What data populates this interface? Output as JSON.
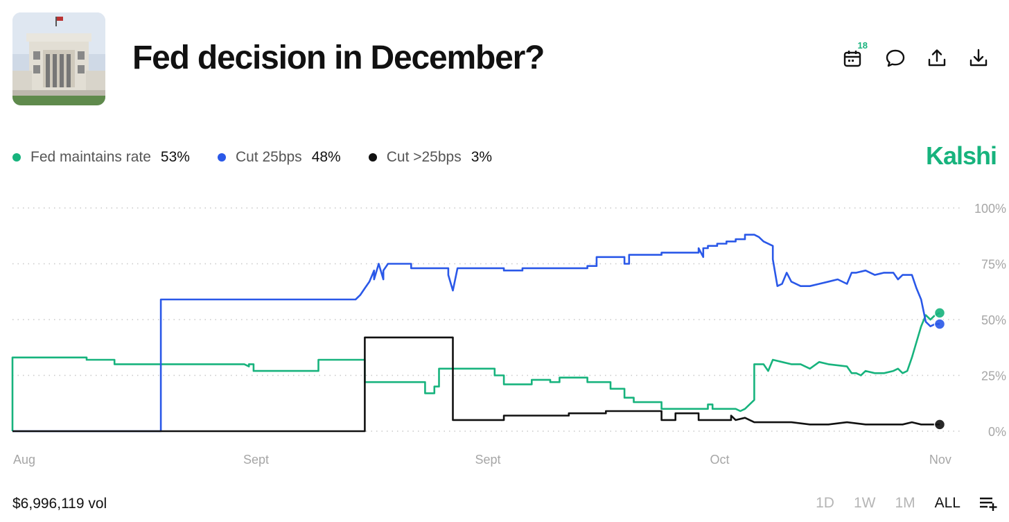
{
  "header": {
    "title": "Fed decision in December?",
    "calendar_badge": "18"
  },
  "legend": [
    {
      "label": "Fed maintains rate",
      "value": "53%",
      "color": "#17b37d"
    },
    {
      "label": "Cut 25bps",
      "value": "48%",
      "color": "#2a58e8"
    },
    {
      "label": "Cut >25bps",
      "value": "3%",
      "color": "#111111"
    }
  ],
  "brand": "Kalshi",
  "footer": {
    "volume": "$6,996,119 vol",
    "ranges": [
      "1D",
      "1W",
      "1M",
      "ALL"
    ],
    "active_range": "ALL"
  },
  "chart_data": {
    "type": "line",
    "title": "Fed decision in December?",
    "xlabel": "",
    "ylabel": "",
    "ylim": [
      0,
      100
    ],
    "y_ticks": [
      "0%",
      "25%",
      "50%",
      "75%",
      "100%"
    ],
    "x_ticks": [
      {
        "label": "Aug",
        "t": 0
      },
      {
        "label": "Sept",
        "t": 0.25
      },
      {
        "label": "Sept",
        "t": 0.5
      },
      {
        "label": "Oct",
        "t": 0.75
      },
      {
        "label": "Nov",
        "t": 0.988
      }
    ],
    "series": [
      {
        "name": "Fed maintains rate",
        "color": "#17b37d",
        "points": [
          [
            0,
            0
          ],
          [
            0,
            33
          ],
          [
            0.08,
            33
          ],
          [
            0.08,
            32
          ],
          [
            0.11,
            32
          ],
          [
            0.11,
            30
          ],
          [
            0.25,
            30
          ],
          [
            0.255,
            29
          ],
          [
            0.255,
            30
          ],
          [
            0.255,
            30
          ],
          [
            0.255,
            29
          ],
          [
            0.255,
            30
          ],
          [
            0.255,
            30
          ],
          [
            0.255,
            29
          ],
          [
            0.255,
            30
          ],
          [
            0.255,
            30
          ],
          [
            0.255,
            29
          ],
          [
            0.255,
            30
          ],
          [
            0.255,
            30
          ],
          [
            0.255,
            29
          ],
          [
            0.255,
            30
          ],
          [
            0.255,
            30
          ],
          [
            0.255,
            30
          ],
          [
            0.255,
            30
          ],
          [
            0.255,
            30
          ],
          [
            0.255,
            30
          ],
          [
            0.255,
            30
          ],
          [
            0.255,
            30
          ],
          [
            0.255,
            30
          ],
          [
            0.255,
            30
          ],
          [
            0.255,
            30
          ],
          [
            0.255,
            30
          ],
          [
            0.255,
            30
          ],
          [
            0.255,
            30
          ],
          [
            0.255,
            30
          ],
          [
            0.255,
            30
          ],
          [
            0.255,
            30
          ],
          [
            0.255,
            30
          ],
          [
            0.255,
            30
          ],
          [
            0.255,
            30
          ],
          [
            0.255,
            30
          ],
          [
            0.255,
            30
          ],
          [
            0.255,
            30
          ],
          [
            0.255,
            30
          ],
          [
            0.255,
            30
          ],
          [
            0.255,
            30
          ],
          [
            0.255,
            30
          ],
          [
            0.255,
            30
          ],
          [
            0.255,
            30
          ],
          [
            0.255,
            30
          ],
          [
            0.255,
            30
          ],
          [
            0.26,
            30
          ],
          [
            0.26,
            27
          ],
          [
            0.33,
            27
          ],
          [
            0.33,
            32
          ],
          [
            0.38,
            32
          ],
          [
            0.38,
            22
          ],
          [
            0.445,
            22
          ],
          [
            0.445,
            17
          ],
          [
            0.455,
            17
          ],
          [
            0.455,
            20
          ],
          [
            0.46,
            20
          ],
          [
            0.46,
            28
          ],
          [
            0.52,
            28
          ],
          [
            0.52,
            25
          ],
          [
            0.53,
            25
          ],
          [
            0.53,
            21
          ],
          [
            0.56,
            21
          ],
          [
            0.56,
            23
          ],
          [
            0.58,
            23
          ],
          [
            0.58,
            22
          ],
          [
            0.59,
            22
          ],
          [
            0.59,
            24
          ],
          [
            0.62,
            24
          ],
          [
            0.62,
            22
          ],
          [
            0.645,
            22
          ],
          [
            0.645,
            19
          ],
          [
            0.66,
            19
          ],
          [
            0.66,
            15
          ],
          [
            0.67,
            15
          ],
          [
            0.67,
            13
          ],
          [
            0.7,
            13
          ],
          [
            0.7,
            10
          ],
          [
            0.75,
            10
          ],
          [
            0.75,
            12
          ],
          [
            0.755,
            12
          ],
          [
            0.755,
            10
          ],
          [
            0.78,
            10
          ],
          [
            0.785,
            9
          ],
          [
            0.79,
            10
          ],
          [
            0.8,
            14
          ],
          [
            0.8,
            30
          ],
          [
            0.81,
            30
          ],
          [
            0.815,
            27
          ],
          [
            0.82,
            32
          ],
          [
            0.83,
            31
          ],
          [
            0.84,
            30
          ],
          [
            0.85,
            30
          ],
          [
            0.86,
            28
          ],
          [
            0.87,
            31
          ],
          [
            0.88,
            30
          ],
          [
            0.9,
            29
          ],
          [
            0.905,
            26
          ],
          [
            0.91,
            26
          ],
          [
            0.915,
            25
          ],
          [
            0.92,
            27
          ],
          [
            0.93,
            26
          ],
          [
            0.94,
            26
          ],
          [
            0.95,
            27
          ],
          [
            0.955,
            28
          ],
          [
            0.96,
            26
          ],
          [
            0.965,
            27
          ],
          [
            0.97,
            33
          ],
          [
            0.98,
            47
          ],
          [
            0.985,
            52
          ],
          [
            0.99,
            50
          ],
          [
            0.995,
            52
          ],
          [
            1,
            53
          ]
        ]
      },
      {
        "name": "Cut 25bps",
        "color": "#2a58e8",
        "points": [
          [
            0,
            0
          ],
          [
            0.16,
            0
          ],
          [
            0.16,
            59
          ],
          [
            0.37,
            59
          ],
          [
            0.375,
            61
          ],
          [
            0.38,
            64
          ],
          [
            0.385,
            67
          ],
          [
            0.39,
            72
          ],
          [
            0.39,
            68
          ],
          [
            0.395,
            75
          ],
          [
            0.4,
            68
          ],
          [
            0.4,
            72
          ],
          [
            0.405,
            75
          ],
          [
            0.43,
            75
          ],
          [
            0.43,
            73
          ],
          [
            0.47,
            73
          ],
          [
            0.47,
            70
          ],
          [
            0.475,
            63
          ],
          [
            0.48,
            73
          ],
          [
            0.53,
            73
          ],
          [
            0.53,
            72
          ],
          [
            0.55,
            72
          ],
          [
            0.55,
            73
          ],
          [
            0.62,
            73
          ],
          [
            0.62,
            74
          ],
          [
            0.63,
            74
          ],
          [
            0.63,
            78
          ],
          [
            0.66,
            78
          ],
          [
            0.66,
            75
          ],
          [
            0.665,
            75
          ],
          [
            0.665,
            79
          ],
          [
            0.7,
            79
          ],
          [
            0.7,
            80
          ],
          [
            0.74,
            80
          ],
          [
            0.74,
            82
          ],
          [
            0.745,
            78
          ],
          [
            0.745,
            82
          ],
          [
            0.75,
            82
          ],
          [
            0.75,
            83
          ],
          [
            0.76,
            83
          ],
          [
            0.76,
            84
          ],
          [
            0.77,
            84
          ],
          [
            0.77,
            85
          ],
          [
            0.78,
            85
          ],
          [
            0.78,
            86
          ],
          [
            0.79,
            86
          ],
          [
            0.79,
            88
          ],
          [
            0.8,
            88
          ],
          [
            0.805,
            87
          ],
          [
            0.81,
            85
          ],
          [
            0.82,
            83
          ],
          [
            0.82,
            77
          ],
          [
            0.825,
            65
          ],
          [
            0.83,
            66
          ],
          [
            0.835,
            71
          ],
          [
            0.84,
            67
          ],
          [
            0.85,
            65
          ],
          [
            0.86,
            65
          ],
          [
            0.87,
            66
          ],
          [
            0.88,
            67
          ],
          [
            0.89,
            68
          ],
          [
            0.9,
            66
          ],
          [
            0.905,
            71
          ],
          [
            0.91,
            71
          ],
          [
            0.92,
            72
          ],
          [
            0.93,
            70
          ],
          [
            0.94,
            71
          ],
          [
            0.95,
            71
          ],
          [
            0.955,
            68
          ],
          [
            0.96,
            70
          ],
          [
            0.97,
            70
          ],
          [
            0.975,
            64
          ],
          [
            0.98,
            59
          ],
          [
            0.985,
            49
          ],
          [
            0.99,
            47
          ],
          [
            0.995,
            48
          ],
          [
            1,
            48
          ]
        ]
      },
      {
        "name": "Cut >25bps",
        "color": "#111111",
        "points": [
          [
            0,
            0
          ],
          [
            0.38,
            0
          ],
          [
            0.38,
            42
          ],
          [
            0.475,
            42
          ],
          [
            0.475,
            5
          ],
          [
            0.53,
            5
          ],
          [
            0.53,
            7
          ],
          [
            0.6,
            7
          ],
          [
            0.6,
            8
          ],
          [
            0.64,
            8
          ],
          [
            0.64,
            9
          ],
          [
            0.7,
            9
          ],
          [
            0.7,
            5
          ],
          [
            0.715,
            5
          ],
          [
            0.715,
            8
          ],
          [
            0.74,
            8
          ],
          [
            0.74,
            5
          ],
          [
            0.775,
            5
          ],
          [
            0.775,
            7
          ],
          [
            0.78,
            5
          ],
          [
            0.79,
            6
          ],
          [
            0.8,
            4
          ],
          [
            0.82,
            4
          ],
          [
            0.84,
            4
          ],
          [
            0.86,
            3
          ],
          [
            0.88,
            3
          ],
          [
            0.9,
            4
          ],
          [
            0.92,
            3
          ],
          [
            0.94,
            3
          ],
          [
            0.96,
            3
          ],
          [
            0.97,
            4
          ],
          [
            0.98,
            3
          ],
          [
            0.99,
            3
          ],
          [
            1,
            3
          ]
        ]
      }
    ]
  }
}
